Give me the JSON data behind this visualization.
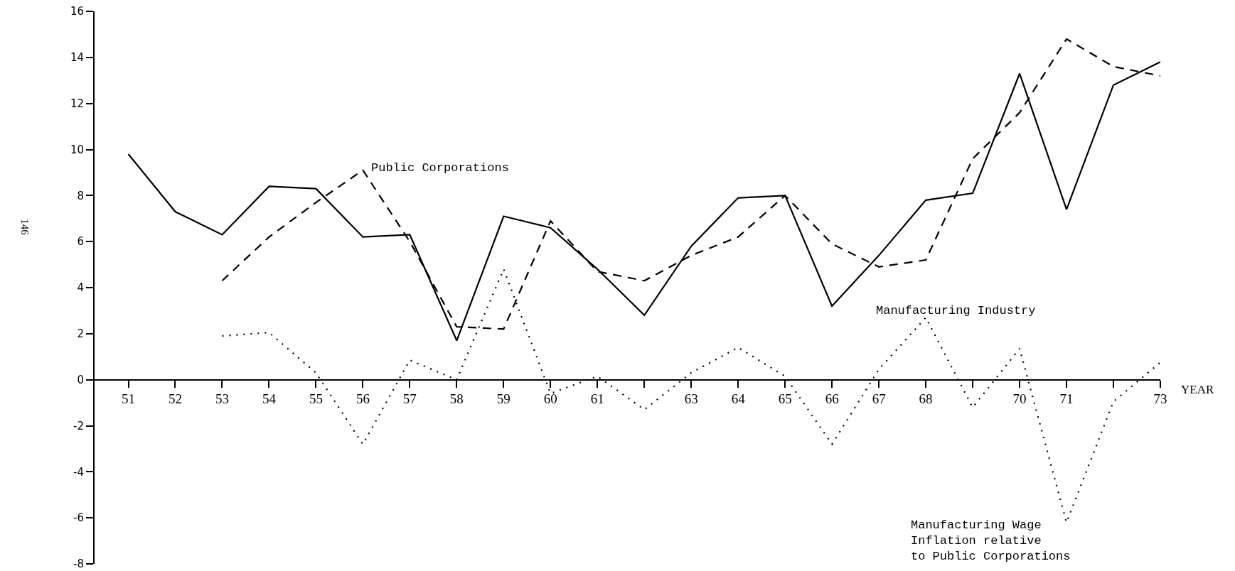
{
  "chart_data": {
    "type": "line",
    "xlabel": "YEAR",
    "x": [
      51,
      52,
      53,
      54,
      55,
      56,
      57,
      58,
      59,
      60,
      61,
      62,
      63,
      64,
      65,
      66,
      67,
      68,
      69,
      70,
      71,
      72,
      73
    ],
    "series": [
      {
        "name": "Manufacturing Industry",
        "color": "#000000",
        "line_style": "solid",
        "values": [
          9.8,
          7.3,
          6.3,
          8.4,
          8.3,
          6.2,
          6.3,
          1.7,
          7.1,
          6.6,
          4.8,
          2.8,
          5.8,
          7.9,
          8.0,
          3.2,
          5.4,
          7.8,
          8.1,
          13.3,
          7.4,
          12.8,
          13.8
        ]
      },
      {
        "name": "Public Corporations",
        "color": "#000000",
        "line_style": "dashed",
        "values": [
          null,
          null,
          4.3,
          6.2,
          7.7,
          9.1,
          6.0,
          2.3,
          2.2,
          6.9,
          4.7,
          4.3,
          5.4,
          6.2,
          8.0,
          5.9,
          4.9,
          5.2,
          9.6,
          11.6,
          14.8,
          13.6,
          13.2
        ]
      },
      {
        "name": "Manufacturing Wage Inflation relative to Public Corporations",
        "color": "#000000",
        "line_style": "dotted",
        "values": [
          null,
          null,
          1.9,
          2.05,
          0.3,
          -2.8,
          0.85,
          0,
          4.8,
          -0.6,
          0.15,
          -1.3,
          0.3,
          1.4,
          0.15,
          -2.8,
          0.45,
          2.7,
          -1.2,
          1.35,
          -6.2,
          -0.95,
          0.75
        ]
      }
    ],
    "xlim": [
      50.28,
      73
    ],
    "xticks": [
      51,
      52,
      53,
      54,
      55,
      56,
      57,
      58,
      59,
      60,
      61,
      {
        "value": 62,
        "label": null
      },
      63,
      64,
      65,
      66,
      67,
      68,
      {
        "value": 69,
        "label": null
      },
      70,
      71,
      {
        "value": 72,
        "label": null
      },
      73
    ],
    "ylim": [
      -8,
      16
    ],
    "yticks": [
      -8,
      -6,
      -4,
      -2,
      0,
      2,
      4,
      6,
      8,
      10,
      12,
      14,
      16
    ],
    "annotations": [
      "146"
    ],
    "grid": false,
    "legend": false,
    "marker": "none"
  }
}
